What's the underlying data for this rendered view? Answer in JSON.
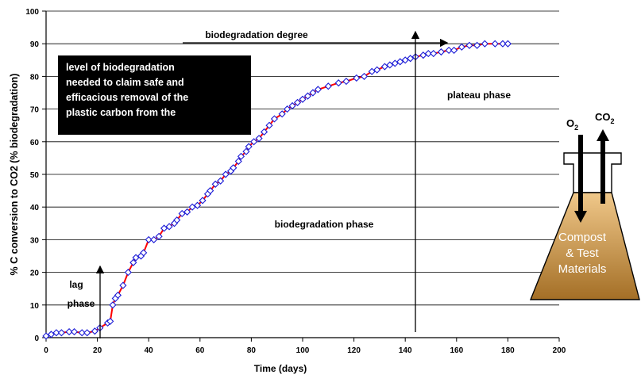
{
  "chart_data": {
    "type": "scatter",
    "title": "",
    "xlabel": "Time (days)",
    "ylabel": "% C conversion to CO2 (% biodegradation)",
    "xlim": [
      0,
      200
    ],
    "ylim": [
      0,
      100
    ],
    "xticks": [
      0,
      20,
      40,
      60,
      80,
      100,
      120,
      140,
      160,
      180,
      200
    ],
    "yticks": [
      0,
      10,
      20,
      30,
      40,
      50,
      60,
      70,
      80,
      90,
      100
    ],
    "grid": "horizontal",
    "colors": {
      "line": "#ff0000",
      "marker": "#1a1ad6",
      "grid": "#000000"
    },
    "series": [
      {
        "x": [
          0,
          2,
          4,
          6,
          9,
          11,
          14,
          16,
          19,
          21,
          24,
          25,
          26,
          27,
          28,
          30,
          32,
          34,
          35,
          37,
          38,
          40,
          42,
          44,
          46,
          48,
          50,
          51,
          53,
          55,
          57,
          59,
          61,
          63,
          64,
          66,
          68,
          70,
          72,
          73,
          75,
          76,
          78,
          79,
          81,
          83,
          85,
          87,
          89,
          92,
          94,
          96,
          98,
          100,
          102,
          104,
          106,
          110,
          114,
          117,
          121,
          124,
          127,
          129,
          132,
          134,
          136,
          138,
          140,
          142,
          144,
          147,
          149,
          151,
          154,
          157,
          159,
          162,
          165,
          168,
          171,
          175,
          178,
          180
        ],
        "y": [
          0.5,
          1,
          1.5,
          1.5,
          1.8,
          1.8,
          1.5,
          1.5,
          2,
          3,
          4.5,
          5,
          10,
          12,
          13,
          16,
          20,
          23,
          24.5,
          25,
          26,
          30,
          30,
          31,
          33.5,
          34,
          35,
          36,
          38,
          38.5,
          40,
          40.5,
          42,
          44,
          45,
          47,
          48,
          50,
          51,
          52,
          54,
          55.5,
          57,
          58.5,
          60,
          61,
          63,
          65,
          67,
          68.5,
          70,
          71,
          72,
          73,
          74,
          75,
          76,
          77,
          78,
          78.5,
          79.5,
          80,
          81.5,
          82,
          83,
          83.5,
          84,
          84.5,
          85,
          85.5,
          86,
          86.5,
          87,
          87,
          87.5,
          88,
          88,
          89,
          89.5,
          89.5,
          90,
          90,
          90,
          90
        ]
      }
    ],
    "annotations": {
      "lag_phase_line1": "lag",
      "lag_phase_line2": "phase",
      "biodegradation_phase": "biodegradation phase",
      "biodegradation_degree": "biodegradation degree",
      "plateau_phase": "plateau phase",
      "note_lines": [
        "level of biodegradation",
        "needed to  claim safe and",
        "efficacious removal of the",
        "plastic carbon from the"
      ]
    }
  },
  "flask": {
    "o2_base": "O",
    "o2_sub": "2",
    "co2_base": "CO",
    "co2_sub": "2",
    "text_lines": [
      "Compost",
      "& Test",
      "Materials"
    ],
    "colors": {
      "top": "#f0c88a",
      "bottom": "#a46f26",
      "outline": "#000000"
    }
  }
}
